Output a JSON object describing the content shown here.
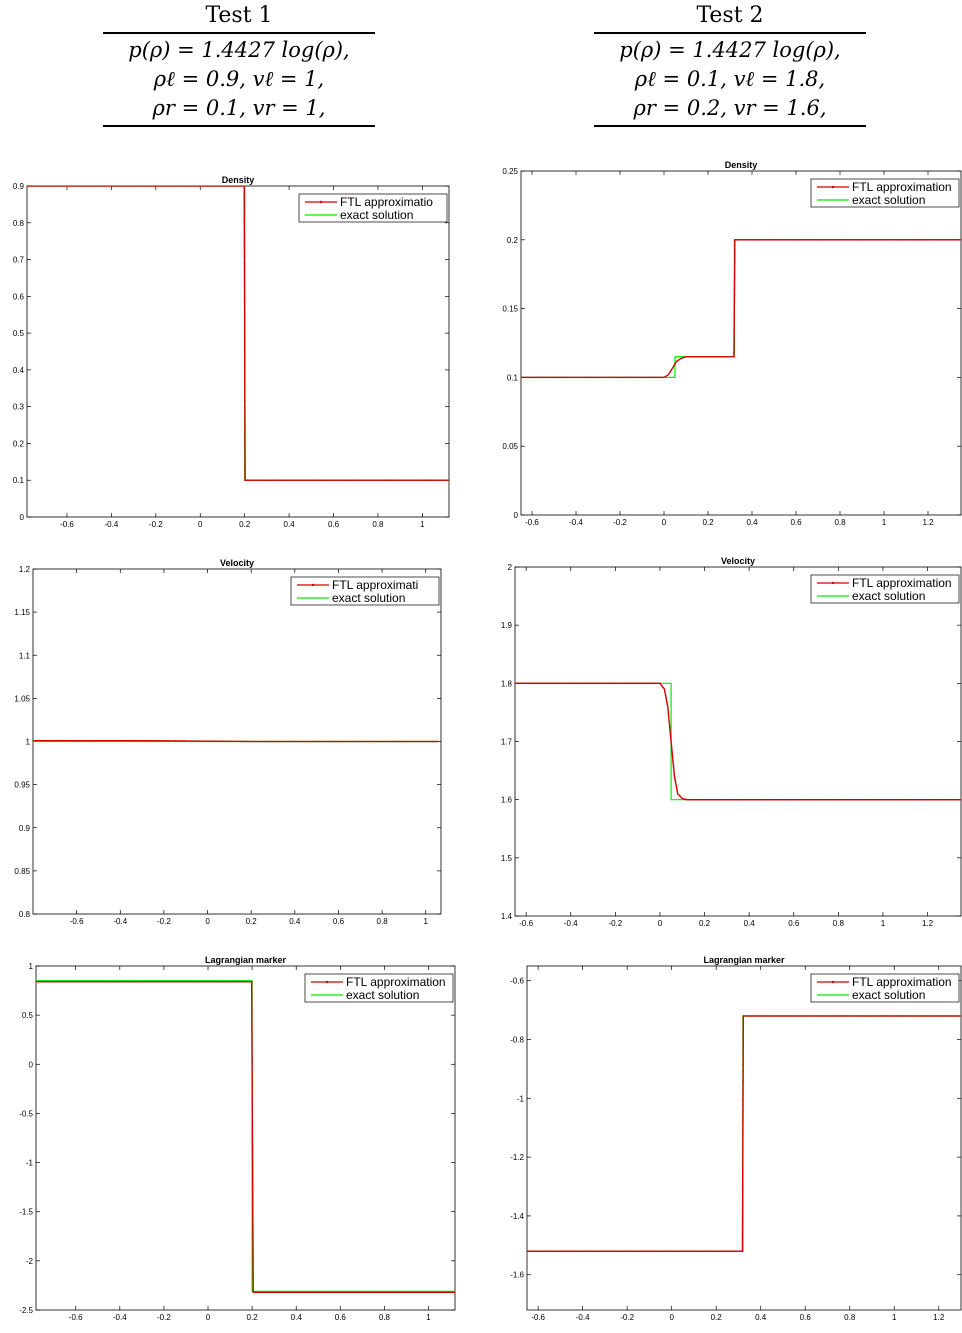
{
  "headers": [
    {
      "title": "Test 1",
      "lines": [
        "p(ρ) = 1.4427 log(ρ),",
        "ρℓ = 0.9,  vℓ = 1,",
        "ρr = 0.1,  vr = 1,"
      ]
    },
    {
      "title": "Test 2",
      "lines": [
        "p(ρ) = 1.4427 log(ρ),",
        "ρℓ = 0.1,  vℓ = 1.8,",
        "ρr = 0.2,  vr = 1.6,"
      ]
    }
  ],
  "colors": {
    "approx": "#d40000",
    "exact": "#00ee00",
    "axis": "#000000"
  },
  "chart_data": [
    {
      "type": "line",
      "title": "Density",
      "xlim": [
        -0.78,
        1.12
      ],
      "ylim": [
        0,
        0.9
      ],
      "xticks": [
        -0.6,
        -0.4,
        -0.2,
        0,
        0.2,
        0.4,
        0.6,
        0.8,
        1
      ],
      "xtick_labels": [
        "-0.6",
        "-0.4",
        "-0.2",
        "0",
        "0.2",
        "0.4",
        "0.6",
        "0.8",
        "1"
      ],
      "yticks": [
        0,
        0.1,
        0.2,
        0.3,
        0.4,
        0.5,
        0.6,
        0.7,
        0.8,
        0.9
      ],
      "ytick_labels": [
        "0",
        "0.1",
        "0.2",
        "0.3",
        "0.4",
        "0.5",
        "0.6",
        "0.7",
        "0.8",
        "0.9"
      ],
      "legend": [
        "FTL approximatio",
        "exact solution"
      ],
      "series": [
        {
          "name": "FTL approximation",
          "x": [
            -0.78,
            0.198,
            0.202,
            1.12
          ],
          "y": [
            0.9,
            0.9,
            0.1,
            0.1
          ]
        },
        {
          "name": "exact solution",
          "x": [
            -0.78,
            0.2,
            0.2,
            1.12
          ],
          "y": [
            0.9,
            0.9,
            0.1,
            0.1
          ]
        }
      ]
    },
    {
      "type": "line",
      "title": "Density",
      "xlim": [
        -0.65,
        1.35
      ],
      "ylim": [
        0,
        0.25
      ],
      "xticks": [
        -0.6,
        -0.4,
        -0.2,
        0,
        0.2,
        0.4,
        0.6,
        0.8,
        1,
        1.2
      ],
      "xtick_labels": [
        "-0.6",
        "-0.4",
        "-0.2",
        "0",
        "0.2",
        "0.4",
        "0.6",
        "0.8",
        "1",
        "1.2"
      ],
      "yticks": [
        0,
        0.05,
        0.1,
        0.15,
        0.2,
        0.25
      ],
      "ytick_labels": [
        "0",
        "0.05",
        "0.1",
        "0.15",
        "0.2",
        "0.25"
      ],
      "legend": [
        "FTL approximation",
        "exact solution"
      ],
      "series": [
        {
          "name": "FTL approximation",
          "x": [
            -0.65,
            0.0,
            0.02,
            0.04,
            0.05,
            0.06,
            0.08,
            0.1,
            0.318,
            0.322,
            1.35
          ],
          "y": [
            0.1,
            0.1,
            0.102,
            0.107,
            0.11,
            0.112,
            0.114,
            0.115,
            0.115,
            0.2,
            0.2
          ]
        },
        {
          "name": "exact solution",
          "x": [
            -0.65,
            0.05,
            0.05,
            0.32,
            0.32,
            1.35
          ],
          "y": [
            0.1,
            0.1,
            0.115,
            0.115,
            0.2,
            0.2
          ]
        }
      ]
    },
    {
      "type": "line",
      "title": "Velocity",
      "xlim": [
        -0.8,
        1.07
      ],
      "ylim": [
        0.8,
        1.2
      ],
      "xticks": [
        -0.6,
        -0.4,
        -0.2,
        0,
        0.2,
        0.4,
        0.6,
        0.8,
        1
      ],
      "xtick_labels": [
        "-0.6",
        "-0.4",
        "-0.2",
        "0",
        "0.2",
        "0.4",
        "0.6",
        "0.8",
        "1"
      ],
      "yticks": [
        0.8,
        0.85,
        0.9,
        0.95,
        1,
        1.05,
        1.1,
        1.15,
        1.2
      ],
      "ytick_labels": [
        "0.8",
        "0.85",
        "0.9",
        "0.95",
        "1",
        "1.05",
        "1.1",
        "1.15",
        "1.2"
      ],
      "legend": [
        "FTL approximati",
        "exact solution"
      ],
      "series": [
        {
          "name": "FTL approximation",
          "x": [
            -0.8,
            -0.3,
            0.2,
            1.06
          ],
          "y": [
            1.001,
            1.001,
            1.0,
            1.0
          ]
        },
        {
          "name": "exact solution",
          "x": [
            -0.8,
            1.06
          ],
          "y": [
            1.0,
            1.0
          ]
        }
      ]
    },
    {
      "type": "line",
      "title": "Velocity",
      "xlim": [
        -0.65,
        1.35
      ],
      "ylim": [
        1.4,
        2.0
      ],
      "xticks": [
        -0.6,
        -0.4,
        -0.2,
        0,
        0.2,
        0.4,
        0.6,
        0.8,
        1,
        1.2
      ],
      "xtick_labels": [
        "-0.6",
        "-0.4",
        "-0.2",
        "0",
        "0.2",
        "0.4",
        "0.6",
        "0.8",
        "1",
        "1.2"
      ],
      "yticks": [
        1.4,
        1.5,
        1.6,
        1.7,
        1.8,
        1.9,
        2.0
      ],
      "ytick_labels": [
        "1.4",
        "1.5",
        "1.6",
        "1.7",
        "1.8",
        "1.9",
        "2"
      ],
      "legend": [
        "FTL approximation",
        "exact solution"
      ],
      "series": [
        {
          "name": "FTL approximation",
          "x": [
            -0.65,
            0.0,
            0.02,
            0.035,
            0.05,
            0.065,
            0.08,
            0.1,
            0.12,
            1.35
          ],
          "y": [
            1.8,
            1.8,
            1.79,
            1.76,
            1.7,
            1.64,
            1.61,
            1.602,
            1.6,
            1.6
          ]
        },
        {
          "name": "exact solution",
          "x": [
            -0.65,
            0.05,
            0.05,
            1.35
          ],
          "y": [
            1.8,
            1.8,
            1.6,
            1.6
          ]
        }
      ]
    },
    {
      "type": "line",
      "title": "Lagrangian marker",
      "xlim": [
        -0.78,
        1.12
      ],
      "ylim": [
        -2.5,
        1.0
      ],
      "xticks": [
        -0.6,
        -0.4,
        -0.2,
        0,
        0.2,
        0.4,
        0.6,
        0.8,
        1
      ],
      "xtick_labels": [
        "-0.6",
        "-0.4",
        "-0.2",
        "0",
        "0.2",
        "0.4",
        "0.6",
        "0.8",
        "1"
      ],
      "yticks": [
        -2.5,
        -2,
        -1.5,
        -1,
        -0.5,
        0,
        0.5,
        1
      ],
      "ytick_labels": [
        "-2.5",
        "-2",
        "-1.5",
        "-1",
        "-0.5",
        "0",
        "0.5",
        "1"
      ],
      "legend": [
        "FTL approximation",
        "exact solution"
      ],
      "series": [
        {
          "name": "FTL approximation",
          "x": [
            -0.78,
            0.198,
            0.205,
            1.12
          ],
          "y": [
            0.84,
            0.84,
            -2.32,
            -2.32
          ]
        },
        {
          "name": "exact solution",
          "x": [
            -0.78,
            0.2,
            0.2,
            1.12
          ],
          "y": [
            0.85,
            0.85,
            -2.31,
            -2.31
          ]
        }
      ]
    },
    {
      "type": "line",
      "title": "Lagrangian marker",
      "xlim": [
        -0.65,
        1.3
      ],
      "ylim": [
        -1.72,
        -0.55
      ],
      "xticks": [
        -0.6,
        -0.4,
        -0.2,
        0,
        0.2,
        0.4,
        0.6,
        0.8,
        1,
        1.2
      ],
      "xtick_labels": [
        "-0.6",
        "-0.4",
        "-0.2",
        "0",
        "0.2",
        "0.4",
        "0.6",
        "0.8",
        "1",
        "1.2"
      ],
      "yticks": [
        -1.6,
        -1.4,
        -1.2,
        -1,
        -0.8,
        -0.6
      ],
      "ytick_labels": [
        "-1.6",
        "-1.4",
        "-1.2",
        "-1",
        "-0.8",
        "-0.6"
      ],
      "legend": [
        "FTL approximation",
        "exact solution"
      ],
      "series": [
        {
          "name": "FTL approximation",
          "x": [
            -0.65,
            0.318,
            0.322,
            1.3
          ],
          "y": [
            -1.52,
            -1.52,
            -0.72,
            -0.72
          ]
        },
        {
          "name": "exact solution",
          "x": [
            -0.65,
            0.32,
            0.32,
            1.3
          ],
          "y": [
            -1.52,
            -1.52,
            -0.72,
            -0.72
          ]
        }
      ]
    }
  ]
}
